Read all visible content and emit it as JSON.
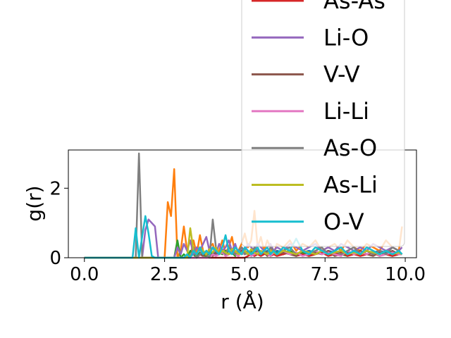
{
  "chart_data": {
    "type": "line",
    "title": "",
    "xlabel": "r (Å)",
    "ylabel": "g(r)",
    "xlim": [
      -0.5,
      10.35
    ],
    "ylim": [
      0,
      3.1
    ],
    "xticks": [
      {
        "value": 0.0,
        "label": "0.0"
      },
      {
        "value": 2.5,
        "label": "2.5"
      },
      {
        "value": 5.0,
        "label": "5.0"
      },
      {
        "value": 7.5,
        "label": "7.5"
      },
      {
        "value": 10.0,
        "label": "10.0"
      }
    ],
    "yticks": [
      {
        "value": 0,
        "label": "0"
      },
      {
        "value": 2,
        "label": "2"
      }
    ],
    "grid": false,
    "legend_position": "upper-right, extending above the axes",
    "legend": [
      {
        "name": "As-As",
        "color": "#d62728"
      },
      {
        "name": "Li-O",
        "color": "#9467bd"
      },
      {
        "name": "V-V",
        "color": "#8c564b"
      },
      {
        "name": "Li-Li",
        "color": "#e377c2"
      },
      {
        "name": "As-O",
        "color": "#7f7f7f"
      },
      {
        "name": "As-Li",
        "color": "#bcbd22"
      },
      {
        "name": "O-V",
        "color": "#17becf"
      }
    ],
    "x": [
      0.0,
      0.5,
      1.0,
      1.5,
      1.6,
      1.7,
      1.8,
      1.9,
      2.0,
      2.1,
      2.2,
      2.3,
      2.4,
      2.5,
      2.6,
      2.7,
      2.8,
      2.9,
      3.0,
      3.1,
      3.2,
      3.3,
      3.4,
      3.5,
      3.6,
      3.7,
      3.8,
      3.9,
      4.0,
      4.1,
      4.2,
      4.3,
      4.4,
      4.5,
      4.6,
      4.7,
      4.8,
      4.9,
      5.0,
      5.1,
      5.2,
      5.3,
      5.4,
      5.5,
      5.6,
      5.7,
      5.8,
      5.9,
      6.0,
      6.2,
      6.4,
      6.6,
      6.8,
      7.0,
      7.2,
      7.4,
      7.6,
      7.8,
      8.0,
      8.2,
      8.4,
      8.6,
      8.8,
      9.0,
      9.2,
      9.4,
      9.6,
      9.8,
      9.9
    ],
    "series": [
      {
        "name": "",
        "color": "#1f77b4",
        "values": [
          0,
          0,
          0,
          0,
          0,
          0,
          0,
          0,
          0,
          0,
          0,
          0,
          0,
          0,
          0,
          0,
          0,
          0,
          0,
          0,
          0,
          0.05,
          0.1,
          0.05,
          0.15,
          0.1,
          0.05,
          0.2,
          0.15,
          0.1,
          0.2,
          0.15,
          0.1,
          0.2,
          0.15,
          0.2,
          0.1,
          0.2,
          0.15,
          0.2,
          0.1,
          0.15,
          0.2,
          0.1,
          0.15,
          0.2,
          0.15,
          0.1,
          0.2,
          0.15,
          0.2,
          0.1,
          0.15,
          0.2,
          0.15,
          0.1,
          0.2,
          0.15,
          0.2,
          0.1,
          0.15,
          0.2,
          0.1,
          0.15,
          0.2,
          0.15,
          0.1,
          0.15,
          0.1
        ]
      },
      {
        "name": "",
        "color": "#ff7f0e",
        "values": [
          0,
          0,
          0,
          0,
          0,
          0,
          0,
          0,
          0,
          0,
          0,
          0,
          0,
          0,
          1.6,
          1.2,
          2.55,
          0,
          0.2,
          0.9,
          0.2,
          0,
          0.5,
          0.1,
          0.65,
          0.2,
          0,
          0.3,
          0.4,
          0.1,
          0.2,
          0.5,
          0.15,
          0.3,
          0.6,
          0.1,
          0.2,
          0.4,
          0.7,
          0.3,
          0.5,
          1.35,
          0.3,
          0.6,
          0.2,
          0.5,
          0.3,
          0.1,
          0.4,
          0.3,
          0.5,
          0.2,
          0.4,
          0.3,
          0.5,
          0.2,
          0.3,
          0.4,
          0.2,
          0.5,
          0.3,
          0.2,
          0.4,
          0.3,
          0.2,
          0.5,
          0.3,
          0.2,
          0.9
        ]
      },
      {
        "name": "",
        "color": "#2ca02c",
        "values": [
          0,
          0,
          0,
          0,
          0,
          0,
          0,
          0,
          0,
          0,
          0,
          0,
          0,
          0,
          0,
          0,
          0,
          0.5,
          0,
          0.1,
          0,
          0.2,
          0.1,
          0,
          0.15,
          0.1,
          0,
          0.2,
          0.1,
          0.05,
          0.15,
          0.1,
          0.2,
          0.1,
          0.15,
          0.05,
          0.2,
          0.1,
          0.15,
          0.1,
          0.2,
          0.05,
          0.15,
          0.1,
          0.2,
          0.15,
          0.05,
          0.1,
          0.15,
          0.1,
          0.2,
          0.1,
          0.15,
          0.05,
          0.1,
          0.2,
          0.1,
          0.15,
          0.1,
          0.05,
          0.15,
          0.1,
          0.2,
          0.1,
          0.15,
          0.1,
          0.05,
          0.1,
          0.1
        ]
      },
      {
        "name": "As-As",
        "color": "#d62728",
        "values": [
          0,
          0,
          0,
          0,
          0,
          0,
          0,
          0,
          0,
          0,
          0,
          0,
          0,
          0,
          0,
          0,
          0,
          0,
          0,
          0,
          0,
          0,
          0,
          0,
          0,
          0,
          0,
          0,
          0,
          0,
          0,
          0,
          0,
          0,
          0,
          0,
          0,
          0,
          0,
          0.05,
          0.1,
          0.05,
          0.1,
          0.05,
          0.1,
          0.15,
          0.05,
          0.1,
          0.05,
          0.1,
          0.15,
          0.05,
          0.1,
          0.05,
          0.1,
          0.15,
          0.05,
          0.1,
          0.15,
          0.05,
          0.1,
          0.05,
          0.1,
          0.15,
          0.05,
          0.1,
          0.05,
          0.1,
          0.1
        ]
      },
      {
        "name": "Li-O",
        "color": "#9467bd",
        "values": [
          0,
          0,
          0,
          0,
          0,
          0,
          0,
          0.8,
          1.1,
          1.0,
          0.9,
          0,
          0,
          0,
          0,
          0,
          0,
          0.3,
          0.1,
          0.4,
          0.2,
          0.5,
          0.1,
          0.3,
          0.2,
          0.4,
          0.6,
          0.2,
          0.3,
          0.1,
          0.4,
          0.2,
          0.3,
          0.5,
          0.2,
          0.4,
          0.1,
          0.3,
          0.2,
          0.4,
          0.3,
          0.2,
          0.4,
          0.3,
          0.2,
          0.3,
          0.4,
          0.2,
          0.3,
          0.2,
          0.4,
          0.3,
          0.2,
          0.3,
          0.4,
          0.2,
          0.3,
          0.2,
          0.4,
          0.3,
          0.2,
          0.3,
          0.2,
          0.4,
          0.3,
          0.2,
          0.3,
          0.2,
          0.3
        ]
      },
      {
        "name": "V-V",
        "color": "#8c564b",
        "values": [
          0,
          0,
          0,
          0,
          0,
          0,
          0,
          0,
          0,
          0,
          0,
          0,
          0,
          0,
          0,
          0,
          0,
          0,
          0,
          0,
          0,
          0,
          0,
          0,
          0.1,
          0.05,
          0.2,
          0.1,
          0.05,
          0.15,
          0.1,
          0.2,
          0.05,
          0.1,
          0.15,
          0.1,
          0.05,
          0.2,
          0.1,
          0.15,
          0.05,
          0.1,
          0.2,
          0.1,
          0.15,
          0.05,
          0.1,
          0.2,
          0.1,
          0.15,
          0.1,
          0.05,
          0.2,
          0.1,
          0.15,
          0.1,
          0.2,
          0.05,
          0.1,
          0.15,
          0.1,
          0.2,
          0.1,
          0.05,
          0.15,
          0.1,
          0.2,
          0.1,
          0.1
        ]
      },
      {
        "name": "Li-Li",
        "color": "#e377c2",
        "values": [
          0,
          0,
          0,
          0,
          0,
          0,
          0,
          0,
          0,
          0,
          0,
          0,
          0,
          0,
          0,
          0,
          0,
          0,
          0,
          0,
          0,
          0,
          0,
          0,
          0,
          0,
          0,
          0,
          0.1,
          0.05,
          0.1,
          0.15,
          0.05,
          0.1,
          0.2,
          0.1,
          0.05,
          0.15,
          0.1,
          0.2,
          0.05,
          0.1,
          0.15,
          0.1,
          0.2,
          0.1,
          0.05,
          0.15,
          0.1,
          0.2,
          0.1,
          0.15,
          0.05,
          0.1,
          0.2,
          0.1,
          0.15,
          0.1,
          0.05,
          0.2,
          0.1,
          0.15,
          0.1,
          0.2,
          0.05,
          0.1,
          0.15,
          0.1,
          0.1
        ]
      },
      {
        "name": "As-O",
        "color": "#7f7f7f",
        "values": [
          0,
          0,
          0,
          0,
          0,
          3.0,
          0,
          0,
          0,
          0,
          0,
          0,
          0,
          0,
          0,
          0,
          0,
          0,
          0,
          0,
          0,
          0,
          0.3,
          0,
          0.1,
          0.2,
          0.1,
          0,
          1.1,
          0.3,
          0.1,
          0.2,
          0.1,
          0.3,
          0.2,
          0.1,
          0.2,
          0.3,
          0.1,
          0.2,
          0.1,
          0.3,
          0.2,
          0.1,
          0.2,
          0.1,
          0.3,
          0.2,
          0.1,
          0.2,
          0.3,
          0.1,
          0.2,
          0.1,
          0.2,
          0.3,
          0.1,
          0.2,
          0.1,
          0.2,
          0.3,
          0.1,
          0.2,
          0.1,
          0.2,
          0.1,
          0.3,
          0.2,
          0.1
        ]
      },
      {
        "name": "As-Li",
        "color": "#bcbd22",
        "values": [
          0,
          0,
          0,
          0,
          0,
          0,
          0,
          0,
          0,
          0,
          0,
          0,
          0,
          0,
          0,
          0,
          0,
          0,
          0,
          0,
          0,
          0.85,
          0.2,
          0.1,
          0.3,
          0.2,
          0.1,
          0.25,
          0.15,
          0.3,
          0.1,
          0.2,
          0.15,
          0.1,
          0.25,
          0.2,
          0.1,
          0.15,
          0.2,
          0.1,
          0.25,
          0.15,
          0.1,
          0.2,
          0.15,
          0.1,
          0.2,
          0.15,
          0.1,
          0.2,
          0.15,
          0.1,
          0.2,
          0.15,
          0.1,
          0.2,
          0.1,
          0.15,
          0.2,
          0.1,
          0.15,
          0.1,
          0.2,
          0.15,
          0.1,
          0.2,
          0.1,
          0.15,
          0.1
        ]
      },
      {
        "name": "O-V",
        "color": "#17becf",
        "values": [
          0,
          0,
          0,
          0,
          0.85,
          0,
          0.6,
          1.2,
          0.7,
          0.05,
          0,
          0,
          0,
          0,
          0,
          0,
          0,
          0,
          0,
          0,
          0.1,
          0,
          0.2,
          0.1,
          0.3,
          0.1,
          0.2,
          0.1,
          0.3,
          0.2,
          0.1,
          0.3,
          0.65,
          0.2,
          0.1,
          0.3,
          0.2,
          0.1,
          0.3,
          0.2,
          0.1,
          0.2,
          0.3,
          0.1,
          0.2,
          0.3,
          0.1,
          0.2,
          0.1,
          0.3,
          0.2,
          0.55,
          0.2,
          0.1,
          0.3,
          0.2,
          0.1,
          0.2,
          0.3,
          0.1,
          0.2,
          0.1,
          0.3,
          0.2,
          0.1,
          0.2,
          0.1,
          0.2,
          0.1
        ]
      }
    ]
  }
}
